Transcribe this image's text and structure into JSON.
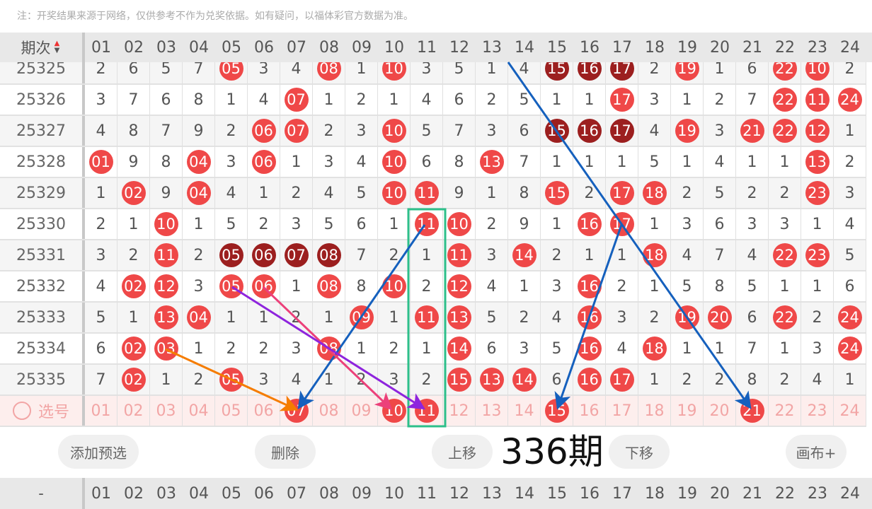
{
  "note": "注：开奖结果来源于网络，仅供参考不作为兑奖依据。如有疑问，以福体彩官方数据为准。",
  "header": {
    "label": "期次",
    "columns": [
      "01",
      "02",
      "03",
      "04",
      "05",
      "06",
      "07",
      "08",
      "09",
      "10",
      "11",
      "12",
      "13",
      "14",
      "15",
      "16",
      "17",
      "18",
      "19",
      "20",
      "21",
      "22",
      "23",
      "24"
    ]
  },
  "rows": [
    {
      "issue": "25325",
      "cells": [
        "2",
        "6",
        "5",
        "7",
        "05",
        "3",
        "4",
        "08",
        "1",
        "10",
        "3",
        "5",
        "1",
        "4",
        "15",
        "16",
        "17",
        "2",
        "19",
        "1",
        "6",
        "22",
        "10",
        "2"
      ],
      "dark": [
        "15",
        "16",
        "17"
      ]
    },
    {
      "issue": "25326",
      "cells": [
        "3",
        "7",
        "6",
        "8",
        "1",
        "4",
        "07",
        "1",
        "2",
        "1",
        "4",
        "6",
        "2",
        "5",
        "1",
        "1",
        "17",
        "3",
        "1",
        "2",
        "7",
        "22",
        "11",
        "24"
      ],
      "dark": []
    },
    {
      "issue": "25327",
      "cells": [
        "4",
        "8",
        "7",
        "9",
        "2",
        "06",
        "07",
        "2",
        "3",
        "10",
        "5",
        "7",
        "3",
        "6",
        "15",
        "16",
        "17",
        "4",
        "19",
        "3",
        "21",
        "22",
        "12",
        "1"
      ],
      "dark": [
        "15",
        "16",
        "17"
      ]
    },
    {
      "issue": "25328",
      "cells": [
        "01",
        "9",
        "8",
        "04",
        "3",
        "06",
        "1",
        "3",
        "4",
        "10",
        "6",
        "8",
        "13",
        "7",
        "1",
        "1",
        "1",
        "5",
        "1",
        "4",
        "1",
        "1",
        "13",
        "2"
      ],
      "dark": []
    },
    {
      "issue": "25329",
      "cells": [
        "1",
        "02",
        "9",
        "04",
        "4",
        "1",
        "2",
        "4",
        "5",
        "10",
        "11",
        "9",
        "1",
        "8",
        "15",
        "2",
        "17",
        "18",
        "2",
        "5",
        "2",
        "2",
        "23",
        "3"
      ],
      "dark": []
    },
    {
      "issue": "25330",
      "cells": [
        "2",
        "1",
        "10",
        "1",
        "5",
        "2",
        "3",
        "5",
        "6",
        "1",
        "11",
        "10",
        "2",
        "9",
        "1",
        "16",
        "17",
        "1",
        "3",
        "6",
        "3",
        "3",
        "1",
        "4"
      ],
      "dark": []
    },
    {
      "issue": "25331",
      "cells": [
        "3",
        "2",
        "11",
        "2",
        "05",
        "06",
        "07",
        "08",
        "7",
        "2",
        "1",
        "11",
        "3",
        "14",
        "2",
        "1",
        "1",
        "18",
        "4",
        "7",
        "4",
        "22",
        "23",
        "5"
      ],
      "dark": [
        "05",
        "06",
        "07",
        "08"
      ]
    },
    {
      "issue": "25332",
      "cells": [
        "4",
        "02",
        "12",
        "3",
        "05",
        "06",
        "1",
        "08",
        "8",
        "10",
        "2",
        "12",
        "4",
        "1",
        "3",
        "16",
        "2",
        "1",
        "5",
        "8",
        "5",
        "1",
        "1",
        "6"
      ],
      "dark": []
    },
    {
      "issue": "25333",
      "cells": [
        "5",
        "1",
        "13",
        "04",
        "1",
        "1",
        "2",
        "1",
        "09",
        "1",
        "11",
        "13",
        "5",
        "2",
        "4",
        "16",
        "3",
        "2",
        "19",
        "20",
        "6",
        "22",
        "2",
        "24"
      ],
      "dark": []
    },
    {
      "issue": "25334",
      "cells": [
        "6",
        "02",
        "03",
        "1",
        "2",
        "2",
        "3",
        "08",
        "1",
        "2",
        "1",
        "14",
        "6",
        "3",
        "5",
        "16",
        "4",
        "18",
        "1",
        "1",
        "7",
        "1",
        "3",
        "24"
      ],
      "dark": []
    },
    {
      "issue": "25335",
      "cells": [
        "7",
        "02",
        "1",
        "2",
        "05",
        "3",
        "4",
        "1",
        "2",
        "3",
        "2",
        "15",
        "13",
        "14",
        "6",
        "16",
        "17",
        "1",
        "2",
        "2",
        "8",
        "2",
        "4",
        "1"
      ],
      "dark": []
    }
  ],
  "select_row": {
    "label": "选号",
    "selected": [
      "07",
      "10",
      "11",
      "15",
      "21"
    ]
  },
  "buttons": {
    "add": "添加预选",
    "delete": "删除",
    "up": "上移",
    "down": "下移",
    "canvas": "画布+"
  },
  "overlay_text": "336期",
  "footer": {
    "label": "-"
  },
  "colors": {
    "hit": "#ef4848",
    "consecutive": "#9c1f1f",
    "highlight": "#2dbf8a",
    "arrow_blue": "#1560bd",
    "arrow_orange": "#f57c00",
    "arrow_pink": "#ec407a",
    "arrow_purple": "#8e24dd"
  }
}
